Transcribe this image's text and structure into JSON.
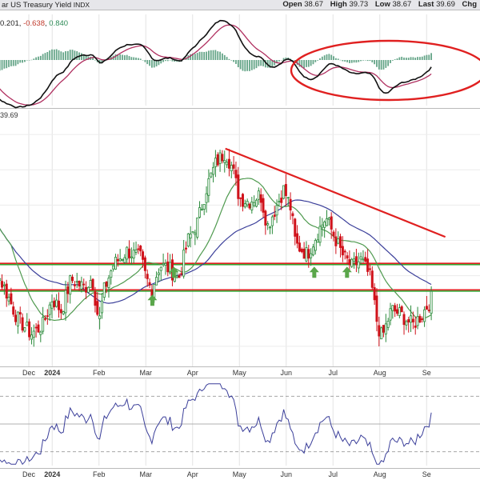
{
  "header": {
    "title": "ar US Treasury Yield",
    "exchange": "INDX",
    "open_label": "Open",
    "open": "38.67",
    "high_label": "High",
    "high": "39.73",
    "low_label": "Low",
    "low": "38.67",
    "last_label": "Last",
    "last": "39.69",
    "chg_label": "Chg"
  },
  "macd_values": {
    "v1": "0.201",
    "sep": ", ",
    "v2": "-0.638",
    "v3": "0.840"
  },
  "last_price_tag": "39.69",
  "colors": {
    "up": "#2a8a3a",
    "down": "#d0121b",
    "sma_short": "#4f9a4f",
    "sma_long": "#3b3f9a",
    "support": "#1a9a1a",
    "resistance": "#e02020",
    "macd_line": "#111111",
    "signal_line": "#b03060",
    "histogram": "#3f8f6a",
    "rsi_line": "#3b3f9a",
    "arrow": "#5aa64a",
    "header_bg": "#e6e6ea"
  },
  "chart_data": {
    "type": "candlestick",
    "instrument": "US Treasury Yield",
    "months_top": [
      "Dec",
      "2024",
      "Feb",
      "Mar",
      "Apr",
      "May",
      "Jun",
      "Jul",
      "Aug",
      "Se"
    ],
    "months_bottom": [
      "Dec",
      "2024",
      "Feb",
      "Mar",
      "Apr",
      "May",
      "Jun",
      "Jul",
      "Aug",
      "Se"
    ],
    "month_bold": [
      false,
      true,
      false,
      false,
      false,
      false,
      false,
      false,
      false,
      false
    ],
    "month_t": [
      0.5,
      1.0,
      2.0,
      3.0,
      4.0,
      5.0,
      6.0,
      7.0,
      8.0,
      9.0
    ],
    "price_range": [
      36.0,
      50.0
    ],
    "price_anchors": [
      [
        -0.8,
        47.2
      ],
      [
        -0.55,
        44.6
      ],
      [
        -0.3,
        41.8
      ],
      [
        0.0,
        40.2
      ],
      [
        0.25,
        38.6
      ],
      [
        0.55,
        37.7
      ],
      [
        0.8,
        38.2
      ],
      [
        1.0,
        39.7
      ],
      [
        1.2,
        39.0
      ],
      [
        1.4,
        40.8
      ],
      [
        1.7,
        40.3
      ],
      [
        1.85,
        40.9
      ],
      [
        2.0,
        38.3
      ],
      [
        2.1,
        40.1
      ],
      [
        2.3,
        41.6
      ],
      [
        2.6,
        42.4
      ],
      [
        2.9,
        42.0
      ],
      [
        3.0,
        40.9
      ],
      [
        3.12,
        40.2
      ],
      [
        3.3,
        41.6
      ],
      [
        3.5,
        41.4
      ],
      [
        3.7,
        40.8
      ],
      [
        3.9,
        43.0
      ],
      [
        4.1,
        44.0
      ],
      [
        4.3,
        46.0
      ],
      [
        4.5,
        47.4
      ],
      [
        4.7,
        48.0
      ],
      [
        4.85,
        47.1
      ],
      [
        5.0,
        45.4
      ],
      [
        5.2,
        45.2
      ],
      [
        5.45,
        45.6
      ],
      [
        5.6,
        43.8
      ],
      [
        5.8,
        45.0
      ],
      [
        5.95,
        45.9
      ],
      [
        6.1,
        44.8
      ],
      [
        6.2,
        42.8
      ],
      [
        6.45,
        42.2
      ],
      [
        6.7,
        43.6
      ],
      [
        6.85,
        44.3
      ],
      [
        7.0,
        43.4
      ],
      [
        7.2,
        42.2
      ],
      [
        7.4,
        41.5
      ],
      [
        7.6,
        41.9
      ],
      [
        7.8,
        40.9
      ],
      [
        7.95,
        38.2
      ],
      [
        8.05,
        37.5
      ],
      [
        8.25,
        39.1
      ],
      [
        8.45,
        38.8
      ],
      [
        8.7,
        38.2
      ],
      [
        8.9,
        38.8
      ],
      [
        9.1,
        39.7
      ]
    ],
    "sma_short_period": 20,
    "sma_long_period": 50,
    "support_lines": [
      41.7,
      40.2
    ],
    "resistance_line": 40.2,
    "trendline": {
      "from": [
        4.7,
        48.2
      ],
      "to": [
        9.4,
        43.2
      ]
    },
    "support_arrows": [
      3.14,
      3.6,
      6.6,
      7.3
    ],
    "macd": {
      "range": [
        -1.0,
        1.0
      ]
    },
    "rsi": {
      "range": [
        20,
        80
      ],
      "guides": [
        70,
        50,
        30
      ]
    },
    "annotation": "ellipse-highlight-macd"
  }
}
